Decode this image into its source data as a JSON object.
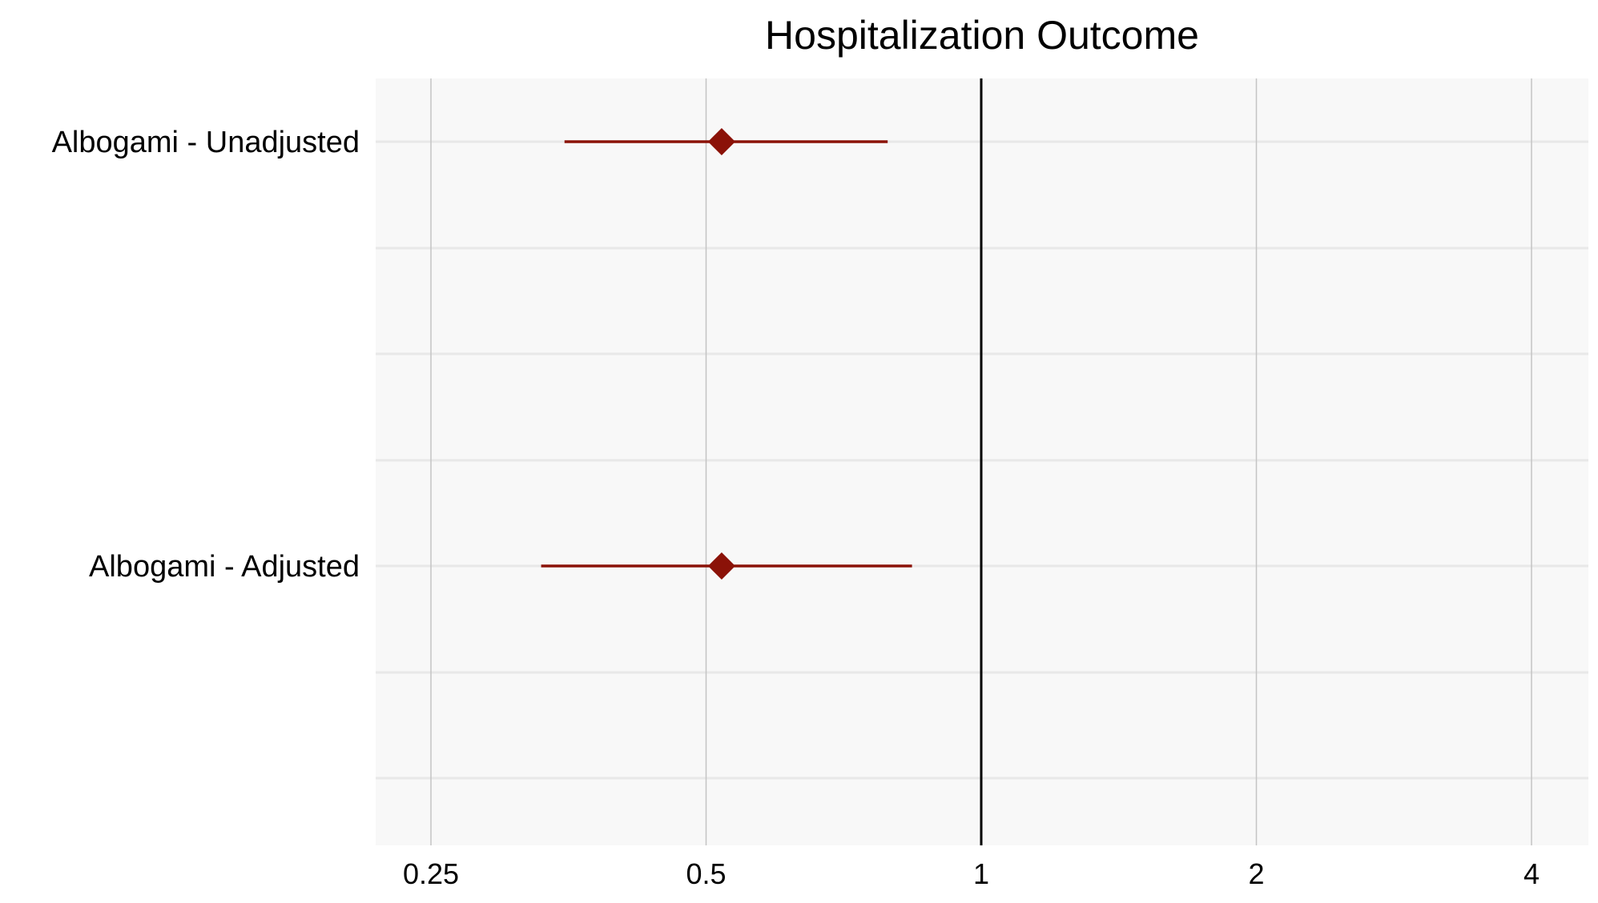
{
  "chart_data": {
    "type": "forest",
    "title": "Hospitalization Outcome",
    "xlabel": "",
    "ylabel": "",
    "x_scale": "log2",
    "xlim": [
      0.2,
      5.0
    ],
    "x_ticks": [
      0.25,
      0.5,
      1,
      2,
      4
    ],
    "x_tick_labels": [
      "0.25",
      "0.5",
      "1",
      "2",
      "4"
    ],
    "reference_line": 1,
    "grid": true,
    "rows": [
      {
        "label": "Albogami - Unadjusted",
        "estimate": 0.52,
        "lower": 0.35,
        "upper": 0.79
      },
      {
        "label": "Albogami - Adjusted",
        "estimate": 0.52,
        "lower": 0.33,
        "upper": 0.84
      }
    ],
    "colors": {
      "point": "#8b1208",
      "ci_line": "#8b1208",
      "panel_background": "#f8f8f8",
      "grid_major": "#c4c4c4",
      "grid_minor": "#e8e8e8",
      "reference_line": "#000000"
    }
  }
}
